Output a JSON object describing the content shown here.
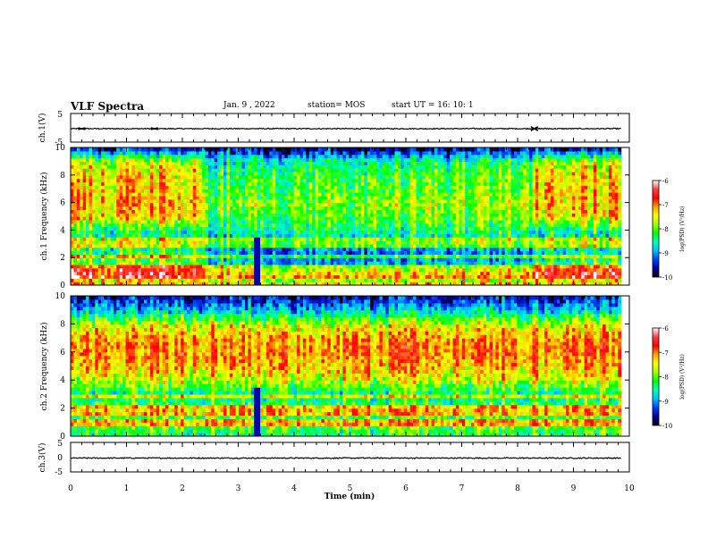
{
  "header": {
    "title": "VLF Spectra",
    "date": "Jan. 9 , 2022",
    "station": "station= MOS",
    "start_ut": "start UT =  16: 10: 1"
  },
  "colorbar": {
    "label": "log(PSD) (V²/Hz)",
    "ticks": [
      "-6",
      "-7",
      "-8",
      "-9",
      "-10"
    ],
    "colors": [
      "#ffffff",
      "#ff4040",
      "#ff0000",
      "#ffa000",
      "#ffff00",
      "#a0ff00",
      "#00ff00",
      "#00ffc0",
      "#00c0ff",
      "#0040ff",
      "#0000a0",
      "#000000"
    ]
  },
  "chart_data": [
    {
      "type": "line",
      "panel": "ch1-waveform",
      "ylabel": "ch.1(V)",
      "ylim": [
        -5,
        5
      ],
      "ytick_labels": [
        "5",
        "-5"
      ],
      "baseline": -0.3,
      "bursts": [
        [
          0.2,
          0.3
        ],
        [
          1.5,
          0.3
        ],
        [
          8.3,
          0.7
        ]
      ]
    },
    {
      "type": "heatmap",
      "panel": "ch1-spectrogram",
      "ylabel": "ch.1 Frequency (kHz)",
      "ylim": [
        0,
        10
      ],
      "ytick_labels": [
        "0",
        "2",
        "4",
        "6",
        "8",
        "10"
      ],
      "z_range": [
        -10,
        -6
      ],
      "z_label": "log(PSD) (V²/Hz)",
      "time_segments": [
        {
          "x": [
            0,
            2.35
          ],
          "z_by_freq": [
            -7.2,
            -7.5,
            -8.2,
            -8.5,
            -8.4,
            -7.3,
            -7.2,
            -7.3,
            -7.4,
            -7.7,
            -9.6
          ]
        },
        {
          "x": [
            2.35,
            3.3
          ],
          "z_by_freq": [
            -7.2,
            -8.2,
            -8.8,
            -9.0,
            -8.4,
            -8.1,
            -7.9,
            -8.1,
            -8.3,
            -8.6,
            -9.6
          ]
        },
        {
          "x": [
            3.3,
            8.25
          ],
          "z_by_freq": [
            -7.3,
            -8.4,
            -9.1,
            -8.9,
            -8.3,
            -8.0,
            -7.8,
            -8.0,
            -8.1,
            -8.4,
            -9.7
          ]
        },
        {
          "x": [
            8.25,
            9.85
          ],
          "z_by_freq": [
            -7.2,
            -7.4,
            -8.5,
            -8.5,
            -8.4,
            -7.3,
            -7.2,
            -7.2,
            -7.3,
            -7.6,
            -9.6
          ]
        }
      ],
      "band_frequencies": [
        0.6,
        1.0,
        1.4,
        2.2,
        3.0,
        3.4
      ],
      "event_x": 3.35
    },
    {
      "type": "heatmap",
      "panel": "ch2-spectrogram",
      "ylabel": "ch.2 Frequency (kHz)",
      "ylim": [
        0,
        10
      ],
      "ytick_labels": [
        "0",
        "2",
        "4",
        "6",
        "8",
        "10"
      ],
      "z_range": [
        -10,
        -6
      ],
      "z_label": "log(PSD) (V²/Hz)",
      "time_segments": [
        {
          "x": [
            0,
            9.85
          ],
          "z_by_freq": [
            -8.3,
            -8.0,
            -8.1,
            -8.5,
            -7.6,
            -7.2,
            -7.0,
            -7.1,
            -7.6,
            -8.8,
            -9.6
          ]
        }
      ],
      "band_frequencies": [
        1.0,
        1.6,
        2.0,
        2.8
      ],
      "event_x": 3.35
    },
    {
      "type": "line",
      "panel": "ch3-waveform",
      "ylabel": "ch.3(V)",
      "ylim": [
        -5,
        5
      ],
      "ytick_labels": [
        "5",
        "0",
        "-5"
      ],
      "baseline": -0.3,
      "bursts": []
    }
  ],
  "xaxis": {
    "label": "Time (min)",
    "xlim": [
      0,
      10
    ],
    "tick_labels": [
      "0",
      "1",
      "2",
      "3",
      "4",
      "5",
      "6",
      "7",
      "8",
      "9",
      "10"
    ]
  }
}
